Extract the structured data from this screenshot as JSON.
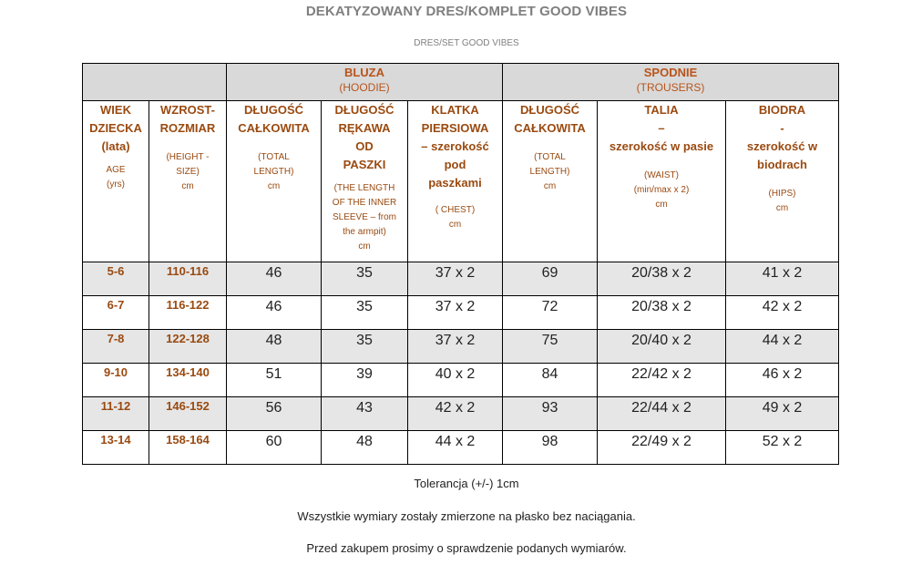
{
  "title": "DEKATYZOWANY DRES/KOMPLET GOOD VIBES",
  "subtitle": "DRES/SET GOOD VIBES",
  "groups": {
    "hoodie": {
      "name": "BLUZA",
      "en": "(HOODIE)"
    },
    "trousers": {
      "name": "SPODNIE",
      "en": "(TROUSERS)"
    }
  },
  "headers": {
    "age": {
      "main": "WIEK\nDZIECKA\n(lata)",
      "sub": "AGE\n(yrs)"
    },
    "size": {
      "main": "WZROST-\nROZMIAR",
      "sub": "(HEIGHT -\nSIZE)\ncm"
    },
    "hoodie_length": {
      "main": "DŁUGOŚĆ\nCAŁKOWITA",
      "sub": "(TOTAL\nLENGTH)\ncm"
    },
    "sleeve": {
      "main": "DŁUGOŚĆ\nRĘKAWA\nOD\nPASZKI",
      "sub": "(THE LENGTH\nOF THE INNER\nSLEEVE – from\nthe armpit)\ncm"
    },
    "chest": {
      "main": "KLATKA\nPIERSIOWA\n– szerokość\npod\npaszkami",
      "sub": "( CHEST)\ncm"
    },
    "trousers_length": {
      "main": "DŁUGOŚĆ\nCAŁKOWITA",
      "sub": "(TOTAL\nLENGTH)\ncm"
    },
    "waist": {
      "main": "TALIA\n–\nszerokość w pasie",
      "sub": "(WAIST)\n(min/max x 2)\ncm"
    },
    "hips": {
      "main": "BIODRA\n-\nszerokość w\nbiodrach",
      "sub": "(HIPS)\ncm"
    }
  },
  "rows": [
    {
      "age": "5-6",
      "size": "110-116",
      "hoodie_length": "46",
      "sleeve": "35",
      "chest": "37 x 2",
      "trousers_length": "69",
      "waist": "20/38 x 2",
      "hips": "41 x 2"
    },
    {
      "age": "6-7",
      "size": "116-122",
      "hoodie_length": "46",
      "sleeve": "35",
      "chest": "37 x 2",
      "trousers_length": "72",
      "waist": "20/38 x 2",
      "hips": "42 x 2"
    },
    {
      "age": "7-8",
      "size": "122-128",
      "hoodie_length": "48",
      "sleeve": "35",
      "chest": "37 x 2",
      "trousers_length": "75",
      "waist": "20/40 x 2",
      "hips": "44 x 2"
    },
    {
      "age": "9-10",
      "size": "134-140",
      "hoodie_length": "51",
      "sleeve": "39",
      "chest": "40 x 2",
      "trousers_length": "84",
      "waist": "22/42 x 2",
      "hips": "46 x 2"
    },
    {
      "age": "11-12",
      "size": "146-152",
      "hoodie_length": "56",
      "sleeve": "43",
      "chest": "42 x 2",
      "trousers_length": "93",
      "waist": "22/44 x 2",
      "hips": "49 x 2"
    },
    {
      "age": "13-14",
      "size": "158-164",
      "hoodie_length": "60",
      "sleeve": "48",
      "chest": "44 x 2",
      "trousers_length": "98",
      "waist": "22/49 x 2",
      "hips": "52 x 2"
    }
  ],
  "notes": {
    "tolerance": "Tolerancja (+/-) 1cm",
    "flat": "Wszystkie wymiary zostały zmierzone na płasko bez naciągania.",
    "check": "Przed zakupem prosimy o sprawdzenie podanych wymiarów."
  }
}
